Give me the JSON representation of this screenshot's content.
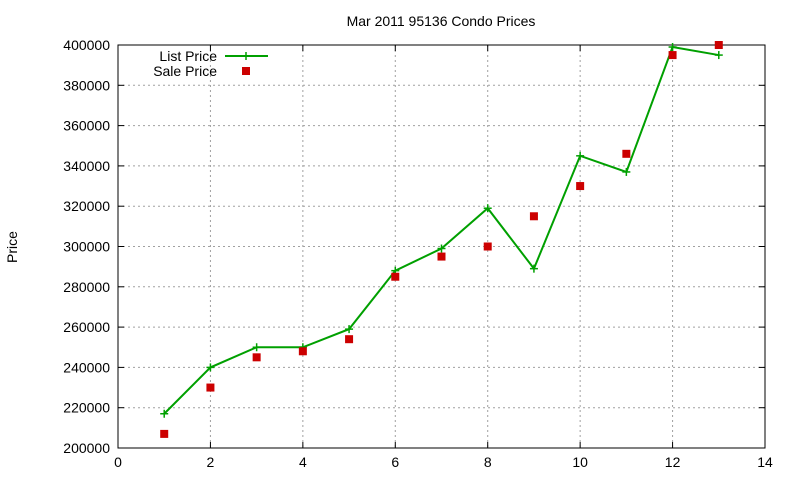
{
  "chart_data": {
    "type": "line",
    "title": "Mar 2011 95136 Condo Prices",
    "xlabel": "",
    "ylabel": "Price",
    "xlim": [
      0,
      14
    ],
    "ylim": [
      200000,
      400000
    ],
    "x_ticks": [
      0,
      2,
      4,
      6,
      8,
      10,
      12,
      14
    ],
    "y_ticks": [
      200000,
      220000,
      240000,
      260000,
      280000,
      300000,
      320000,
      340000,
      360000,
      380000,
      400000
    ],
    "grid": true,
    "legend_position": "top-left",
    "series": [
      {
        "name": "List Price",
        "style": "line+cross",
        "color": "#00a000",
        "x": [
          1,
          2,
          3,
          4,
          5,
          6,
          7,
          8,
          9,
          10,
          11,
          12,
          13
        ],
        "values": [
          217000,
          240000,
          250000,
          250000,
          259000,
          288000,
          299000,
          319000,
          289000,
          345000,
          337000,
          399000,
          395000
        ]
      },
      {
        "name": "Sale Price",
        "style": "square-points",
        "color": "#cc0000",
        "x": [
          1,
          2,
          3,
          4,
          5,
          6,
          7,
          8,
          9,
          10,
          11,
          12,
          13
        ],
        "values": [
          207000,
          230000,
          245000,
          248000,
          254000,
          285000,
          295000,
          300000,
          315000,
          330000,
          346000,
          395000,
          400000
        ]
      }
    ]
  }
}
